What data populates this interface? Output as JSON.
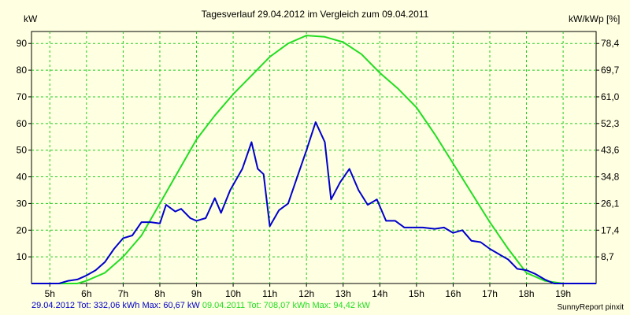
{
  "chart_data": {
    "type": "line",
    "title": "Tagesverlauf 29.04.2012 im Vergleich zum 09.04.2011",
    "ylabel_left": "kW",
    "ylabel_right": "kW/kWp [%]",
    "xlim": [
      4.5,
      19.9
    ],
    "ylim": [
      0,
      94.5
    ],
    "x_ticks": [
      5,
      6,
      7,
      8,
      9,
      10,
      11,
      12,
      13,
      14,
      15,
      16,
      17,
      18,
      19
    ],
    "x_tick_labels": [
      "5h",
      "6h",
      "7h",
      "8h",
      "9h",
      "10h",
      "11h",
      "12h",
      "13h",
      "14h",
      "15h",
      "16h",
      "17h",
      "18h",
      "19h"
    ],
    "y_ticks_left": [
      10,
      20,
      30,
      40,
      50,
      60,
      70,
      80,
      90
    ],
    "y_tick_labels_left": [
      "10",
      "20",
      "30",
      "40",
      "50",
      "60",
      "70",
      "80",
      "90"
    ],
    "y_tick_labels_right": [
      "8,7",
      "17,4",
      "26,1",
      "34,8",
      "43,6",
      "52,3",
      "61,0",
      "69,7",
      "78,4"
    ],
    "grid": true,
    "series": [
      {
        "name": "29.04.2012",
        "color": "#0000cc",
        "x": [
          4.5,
          5.25,
          5.5,
          5.75,
          6.0,
          6.25,
          6.5,
          6.75,
          7.0,
          7.25,
          7.5,
          7.75,
          8.0,
          8.17,
          8.42,
          8.58,
          8.83,
          9.0,
          9.25,
          9.5,
          9.67,
          9.92,
          10.25,
          10.5,
          10.67,
          10.83,
          11.0,
          11.25,
          11.5,
          11.75,
          12.0,
          12.25,
          12.5,
          12.67,
          12.92,
          13.17,
          13.42,
          13.67,
          13.92,
          14.17,
          14.42,
          14.67,
          14.92,
          15.17,
          15.5,
          15.75,
          16.0,
          16.25,
          16.5,
          16.75,
          17.0,
          17.25,
          17.5,
          17.75,
          18.0,
          18.25,
          18.5,
          18.75,
          19.0,
          19.25,
          19.5,
          19.9
        ],
        "y": [
          0,
          0,
          1,
          1.5,
          3,
          5,
          8,
          13,
          17,
          18,
          23,
          23,
          22.5,
          29.5,
          27,
          28,
          24.5,
          23.5,
          24.5,
          32,
          26.5,
          35,
          43,
          53,
          43,
          41,
          21.5,
          27.5,
          30,
          40,
          50,
          60.5,
          53,
          31.5,
          38,
          43,
          35,
          29.5,
          31.5,
          23.5,
          23.5,
          21,
          21,
          21,
          20.5,
          21,
          19,
          20,
          16,
          15.5,
          13,
          11,
          9,
          5.5,
          5,
          3.5,
          1.5,
          0,
          0,
          0,
          0,
          0
        ]
      },
      {
        "name": "09.04.2011",
        "color": "#22dd22",
        "x": [
          4.5,
          5.75,
          6.0,
          6.5,
          7.0,
          7.5,
          8.0,
          8.5,
          9.0,
          9.5,
          10.0,
          10.5,
          11.0,
          11.5,
          12.0,
          12.5,
          13.0,
          13.5,
          14.0,
          14.5,
          15.0,
          15.5,
          16.0,
          16.5,
          17.0,
          17.5,
          18.0,
          18.5,
          19.0,
          19.5,
          19.9
        ],
        "y": [
          0,
          0,
          1,
          4,
          10,
          18,
          30,
          42,
          54,
          63,
          71,
          78,
          85,
          90,
          93,
          92.5,
          90.5,
          86,
          79,
          73,
          66,
          56,
          45,
          34,
          23,
          13,
          4,
          1,
          0,
          0,
          0
        ]
      }
    ]
  },
  "footer": {
    "s1_text": "29.04.2012 Tot: 332,06 kWh Max: 60,67 kW",
    "s2_text": "09.04.2011 Tot: 708,07 kWh Max: 94,42 kW",
    "s1_color": "#0000cc",
    "s2_color": "#22dd22"
  },
  "credit": "SunnyReport pinxit"
}
